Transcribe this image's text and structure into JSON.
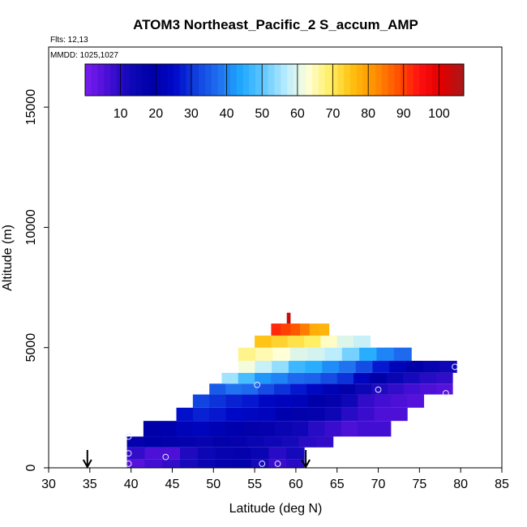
{
  "chart_data": {
    "type": "heatmap",
    "title": "ATOM3 Northeast_Pacific_2 S_accum_AMP",
    "flights_note": "Flts: 12,13",
    "dates_note": "MMDD: 1025,1027",
    "xlabel": "Latitude (deg N)",
    "ylabel": "Altitude (m)",
    "xlim": [
      30,
      85
    ],
    "ylim": [
      0,
      17500
    ],
    "xticks": [
      30,
      35,
      40,
      45,
      50,
      55,
      60,
      65,
      70,
      75,
      80,
      85
    ],
    "yticks": [
      0,
      5000,
      10000,
      15000
    ],
    "colorbar": {
      "range": [
        0,
        107
      ],
      "ticks": [
        10,
        20,
        30,
        40,
        50,
        60,
        70,
        80,
        90,
        100
      ],
      "placement": "top inset",
      "colors": [
        "#7a1cf0",
        "#4a0fd6",
        "#1008b8",
        "#0000a8",
        "#0008c8",
        "#1040e0",
        "#2070f0",
        "#1ea8ff",
        "#60c8ff",
        "#b8ecff",
        "#ffffd8",
        "#ffee60",
        "#ffc010",
        "#ff9000",
        "#ff5500",
        "#ff1010",
        "#e00000",
        "#a81818"
      ]
    },
    "arrows_at_latitude": [
      34.7,
      61.2
    ],
    "grid": false,
    "rows": [
      {
        "alt_bottom": 0,
        "alt_top": 350,
        "lat_start": 39.5,
        "lat_end": 61.0,
        "values": [
          5,
          7,
          9,
          12,
          15,
          17,
          18,
          12,
          8,
          10
        ]
      },
      {
        "alt_bottom": 350,
        "alt_top": 850,
        "lat_start": 39.5,
        "lat_end": 61.0,
        "values": [
          9,
          6,
          6,
          11,
          14,
          16,
          17,
          15,
          10,
          12
        ]
      },
      {
        "alt_bottom": 850,
        "alt_top": 1300,
        "lat_start": 39.5,
        "lat_end": 64.5,
        "values": [
          17,
          19,
          18,
          17,
          16,
          18,
          17,
          15,
          13,
          12,
          10,
          9
        ]
      },
      {
        "alt_bottom": 1300,
        "alt_top": 1950,
        "lat_start": 41.5,
        "lat_end": 71.5,
        "values": [
          19,
          20,
          22,
          23,
          21,
          20,
          18,
          17,
          15,
          13,
          10,
          8,
          6,
          7,
          7
        ]
      },
      {
        "alt_bottom": 1950,
        "alt_top": 2500,
        "lat_start": 45.5,
        "lat_end": 73.5,
        "values": [
          26,
          28,
          27,
          25,
          24,
          23,
          20,
          18,
          17,
          14,
          10,
          8,
          6,
          6
        ]
      },
      {
        "alt_bottom": 2500,
        "alt_top": 3050,
        "lat_start": 47.5,
        "lat_end": 75.5,
        "values": [
          32,
          30,
          28,
          27,
          24,
          23,
          22,
          19,
          17,
          13,
          9,
          7,
          6,
          5
        ]
      },
      {
        "alt_bottom": 3050,
        "alt_top": 3500,
        "lat_start": 49.5,
        "lat_end": 79.0,
        "values": [
          35,
          38,
          37,
          33,
          30,
          27,
          24,
          21,
          18,
          14,
          11,
          9,
          7,
          6,
          5
        ]
      },
      {
        "alt_bottom": 3500,
        "alt_top": 3950,
        "lat_start": 51.0,
        "lat_end": 79.0,
        "values": [
          55,
          48,
          42,
          40,
          37,
          36,
          33,
          30,
          23,
          19,
          15,
          12,
          10,
          9
        ]
      },
      {
        "alt_bottom": 3950,
        "alt_top": 4450,
        "lat_start": 53.0,
        "lat_end": 79.5,
        "values": [
          62,
          58,
          54,
          47,
          45,
          41,
          38,
          33,
          27,
          22,
          19,
          16,
          13
        ]
      },
      {
        "alt_bottom": 4450,
        "alt_top": 5000,
        "lat_start": 53.0,
        "lat_end": 74.0,
        "values": [
          67,
          65,
          63,
          60,
          59,
          57,
          52,
          45,
          40,
          37
        ]
      },
      {
        "alt_bottom": 5000,
        "alt_top": 5500,
        "lat_start": 55.0,
        "lat_end": 69.0,
        "values": [
          75,
          73,
          71,
          69,
          64,
          60,
          58
        ]
      },
      {
        "alt_bottom": 5500,
        "alt_top": 6000,
        "lat_start": 57.0,
        "lat_end": 64.0,
        "values": [
          92,
          90,
          88,
          84,
          78,
          77
        ]
      },
      {
        "alt_bottom": 6000,
        "alt_top": 6450,
        "lat_start": 58.9,
        "lat_end": 59.3,
        "values": [
          104
        ]
      }
    ],
    "points": [
      {
        "lat": 39.7,
        "alt": 170
      },
      {
        "lat": 39.7,
        "alt": 600
      },
      {
        "lat": 39.7,
        "alt": 1300
      },
      {
        "lat": 44.2,
        "alt": 450
      },
      {
        "lat": 55.9,
        "alt": 170
      },
      {
        "lat": 57.8,
        "alt": 170
      },
      {
        "lat": 55.3,
        "alt": 3450
      },
      {
        "lat": 70.0,
        "alt": 3250
      },
      {
        "lat": 78.2,
        "alt": 3100
      },
      {
        "lat": 79.3,
        "alt": 4200
      }
    ]
  }
}
